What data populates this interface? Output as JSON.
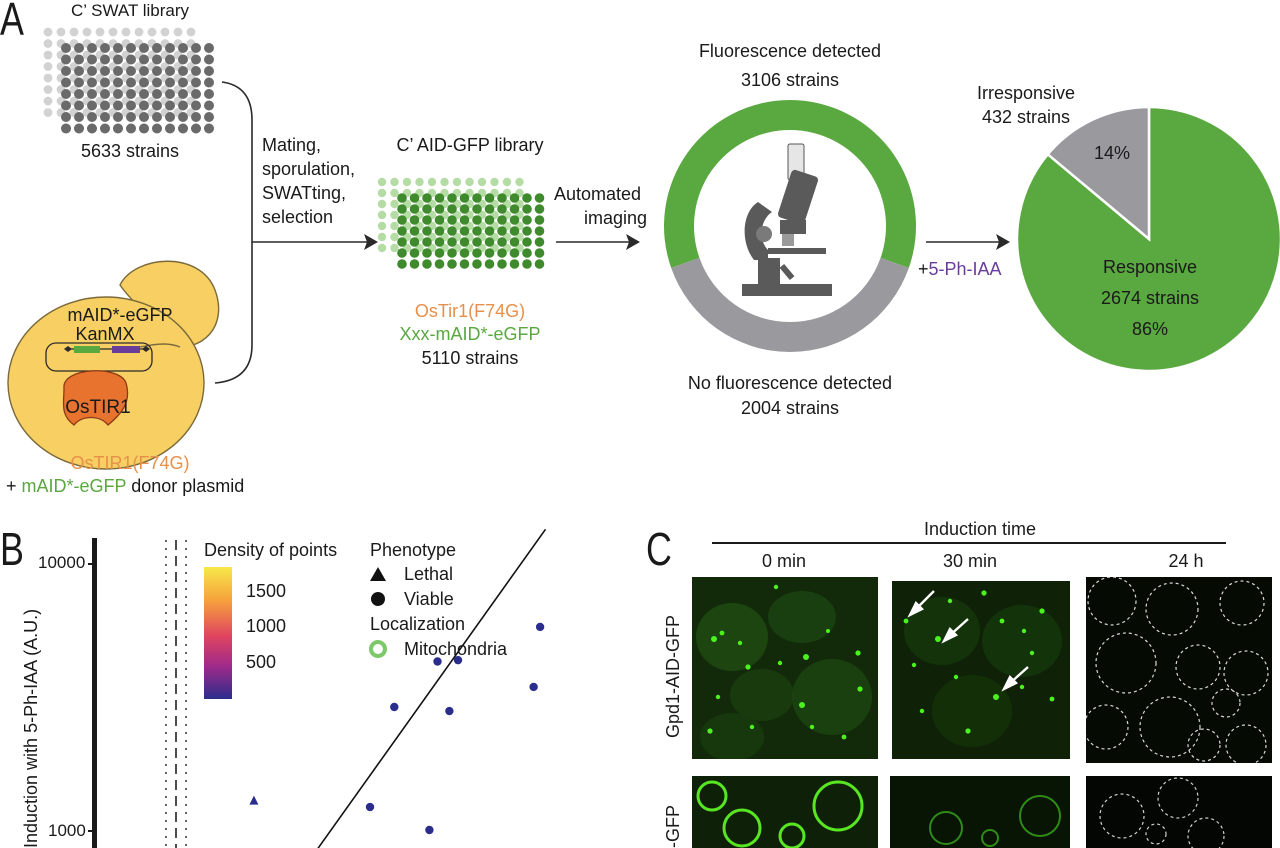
{
  "panels": {
    "a": "A",
    "b": "B",
    "c": "C"
  },
  "panel_a": {
    "swat_title": "C’ SWAT library",
    "swat_strains": "5633 strains",
    "process_lines": [
      "Mating,",
      "sporulation,",
      "SWATting,",
      "selection"
    ],
    "donor": {
      "construct_line1": "mAID*-eGFP",
      "construct_line2": "KanMX",
      "osTIR1_label": "OsTIR1",
      "caption_line1": "OsTIR1(F74G)",
      "caption_plus": "+ ",
      "caption_green": "mAID*-eGFP",
      "caption_rest": " donor plasmid"
    },
    "aid_title": "C’ AID-GFP library",
    "aid_line1": "OsTir1(F74G)",
    "aid_line2": "Xxx-mAID*-eGFP",
    "aid_strains": "5110 strains",
    "imaging_lines": [
      "Automated",
      "imaging"
    ],
    "ring": {
      "top_line1": "Fluorescence detected",
      "top_line2": "3106 strains",
      "bottom_line1": "No fluorescence detected",
      "bottom_line2": "2004 strains",
      "fluorescent": 3106,
      "non_fluorescent": 2004
    },
    "treatment_plus": "+",
    "treatment": "5-Ph-IAA",
    "pie": {
      "irresponsive_line1": "Irresponsive",
      "irresponsive_line2": "432 strains",
      "irresponsive_pct": "14%",
      "responsive_line1": "Responsive",
      "responsive_line2": "2674 strains",
      "responsive_pct": "86%"
    },
    "colors": {
      "green": "#5aa840",
      "grey": "#9a9a9e",
      "orange": "#e8904a",
      "purple": "#6a3d9a",
      "yeast": "#f7cf63"
    }
  },
  "panel_b": {
    "y_label": "Induction with 5-Ph-IAA (A.U.)",
    "y_ticks": [
      "10000",
      "1000"
    ],
    "density_title": "Density of points",
    "density_ticks": [
      "1500",
      "1000",
      "500"
    ],
    "phenotype_title": "Phenotype",
    "phenotype_items": [
      "Lethal",
      "Viable"
    ],
    "localization_title": "Localization",
    "localization_items": [
      "Mitochondria"
    ]
  },
  "chart_data": {
    "type": "scatter",
    "title": "",
    "xlabel": "",
    "ylabel": "Induction with 5-Ph-IAA (A.U.)",
    "y_scale": "log",
    "ylim": [
      780,
      12500
    ],
    "xlim": [
      0,
      1
    ],
    "legend_placement": "top",
    "viable_points": [
      {
        "x": 0.815,
        "y": 5800
      },
      {
        "x": 0.625,
        "y": 4300
      },
      {
        "x": 0.663,
        "y": 4350
      },
      {
        "x": 0.545,
        "y": 2900
      },
      {
        "x": 0.647,
        "y": 2800
      },
      {
        "x": 0.803,
        "y": 3450
      },
      {
        "x": 0.5,
        "y": 1220
      },
      {
        "x": 0.61,
        "y": 1000
      }
    ],
    "lethal_points": [
      {
        "x": 0.285,
        "y": 1290
      }
    ],
    "diagonal": {
      "x": [
        0.39,
        0.825
      ],
      "y": [
        780,
        13500
      ]
    }
  },
  "panel_c": {
    "induction_title": "Induction time",
    "times": [
      "0 min",
      "30 min",
      "24 h"
    ],
    "rows": [
      "Gpd1-AID-GFP",
      "-GFP"
    ]
  }
}
